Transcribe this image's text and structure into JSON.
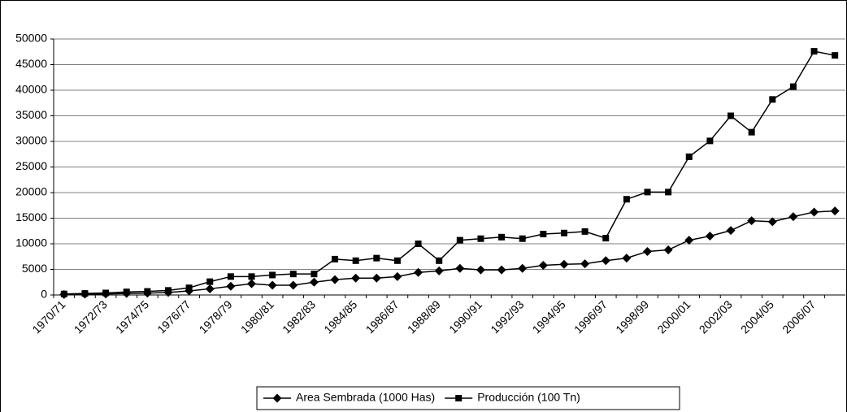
{
  "chart_data": {
    "type": "line",
    "categories": [
      "1970/71",
      null,
      "1972/73",
      null,
      "1974/75",
      null,
      "1976/77",
      null,
      "1978/79",
      null,
      "1980/81",
      null,
      "1982/83",
      null,
      "1984/85",
      null,
      "1986/87",
      null,
      "1988/89",
      null,
      "1990/91",
      null,
      "1992/93",
      null,
      "1994/95",
      null,
      "1996/97",
      null,
      "1998/99",
      null,
      "2000/01",
      null,
      "2002/03",
      null,
      "2004/05",
      null,
      "2006/07",
      null
    ],
    "series": [
      {
        "name": "Area Sembrada (1000 Has)",
        "color": "#000000",
        "marker": "diamond",
        "values": [
          100,
          150,
          200,
          300,
          350,
          500,
          800,
          1200,
          1700,
          2200,
          1900,
          1900,
          2500,
          3000,
          3300,
          3300,
          3600,
          4400,
          4700,
          5200,
          4900,
          4900,
          5200,
          5800,
          6000,
          6100,
          6700,
          7200,
          8500,
          8800,
          10700,
          11500,
          12600,
          14500,
          14300,
          15300,
          16200,
          16400
        ]
      },
      {
        "name": "Producción (100 Tn)",
        "color": "#000000",
        "marker": "square",
        "values": [
          200,
          300,
          400,
          600,
          700,
          900,
          1400,
          2600,
          3600,
          3600,
          3900,
          4100,
          4100,
          7000,
          6700,
          7200,
          6700,
          10000,
          6700,
          10700,
          11000,
          11300,
          11000,
          11900,
          12100,
          12400,
          11100,
          18700,
          20100,
          20100,
          27000,
          30100,
          35000,
          31800,
          38200,
          40700,
          47600,
          46800
        ]
      }
    ],
    "ylim": [
      0,
      50000
    ],
    "yticks": [
      0,
      5000,
      10000,
      15000,
      20000,
      25000,
      30000,
      35000,
      40000,
      45000,
      50000
    ],
    "grid": true,
    "legend": "bottom"
  }
}
